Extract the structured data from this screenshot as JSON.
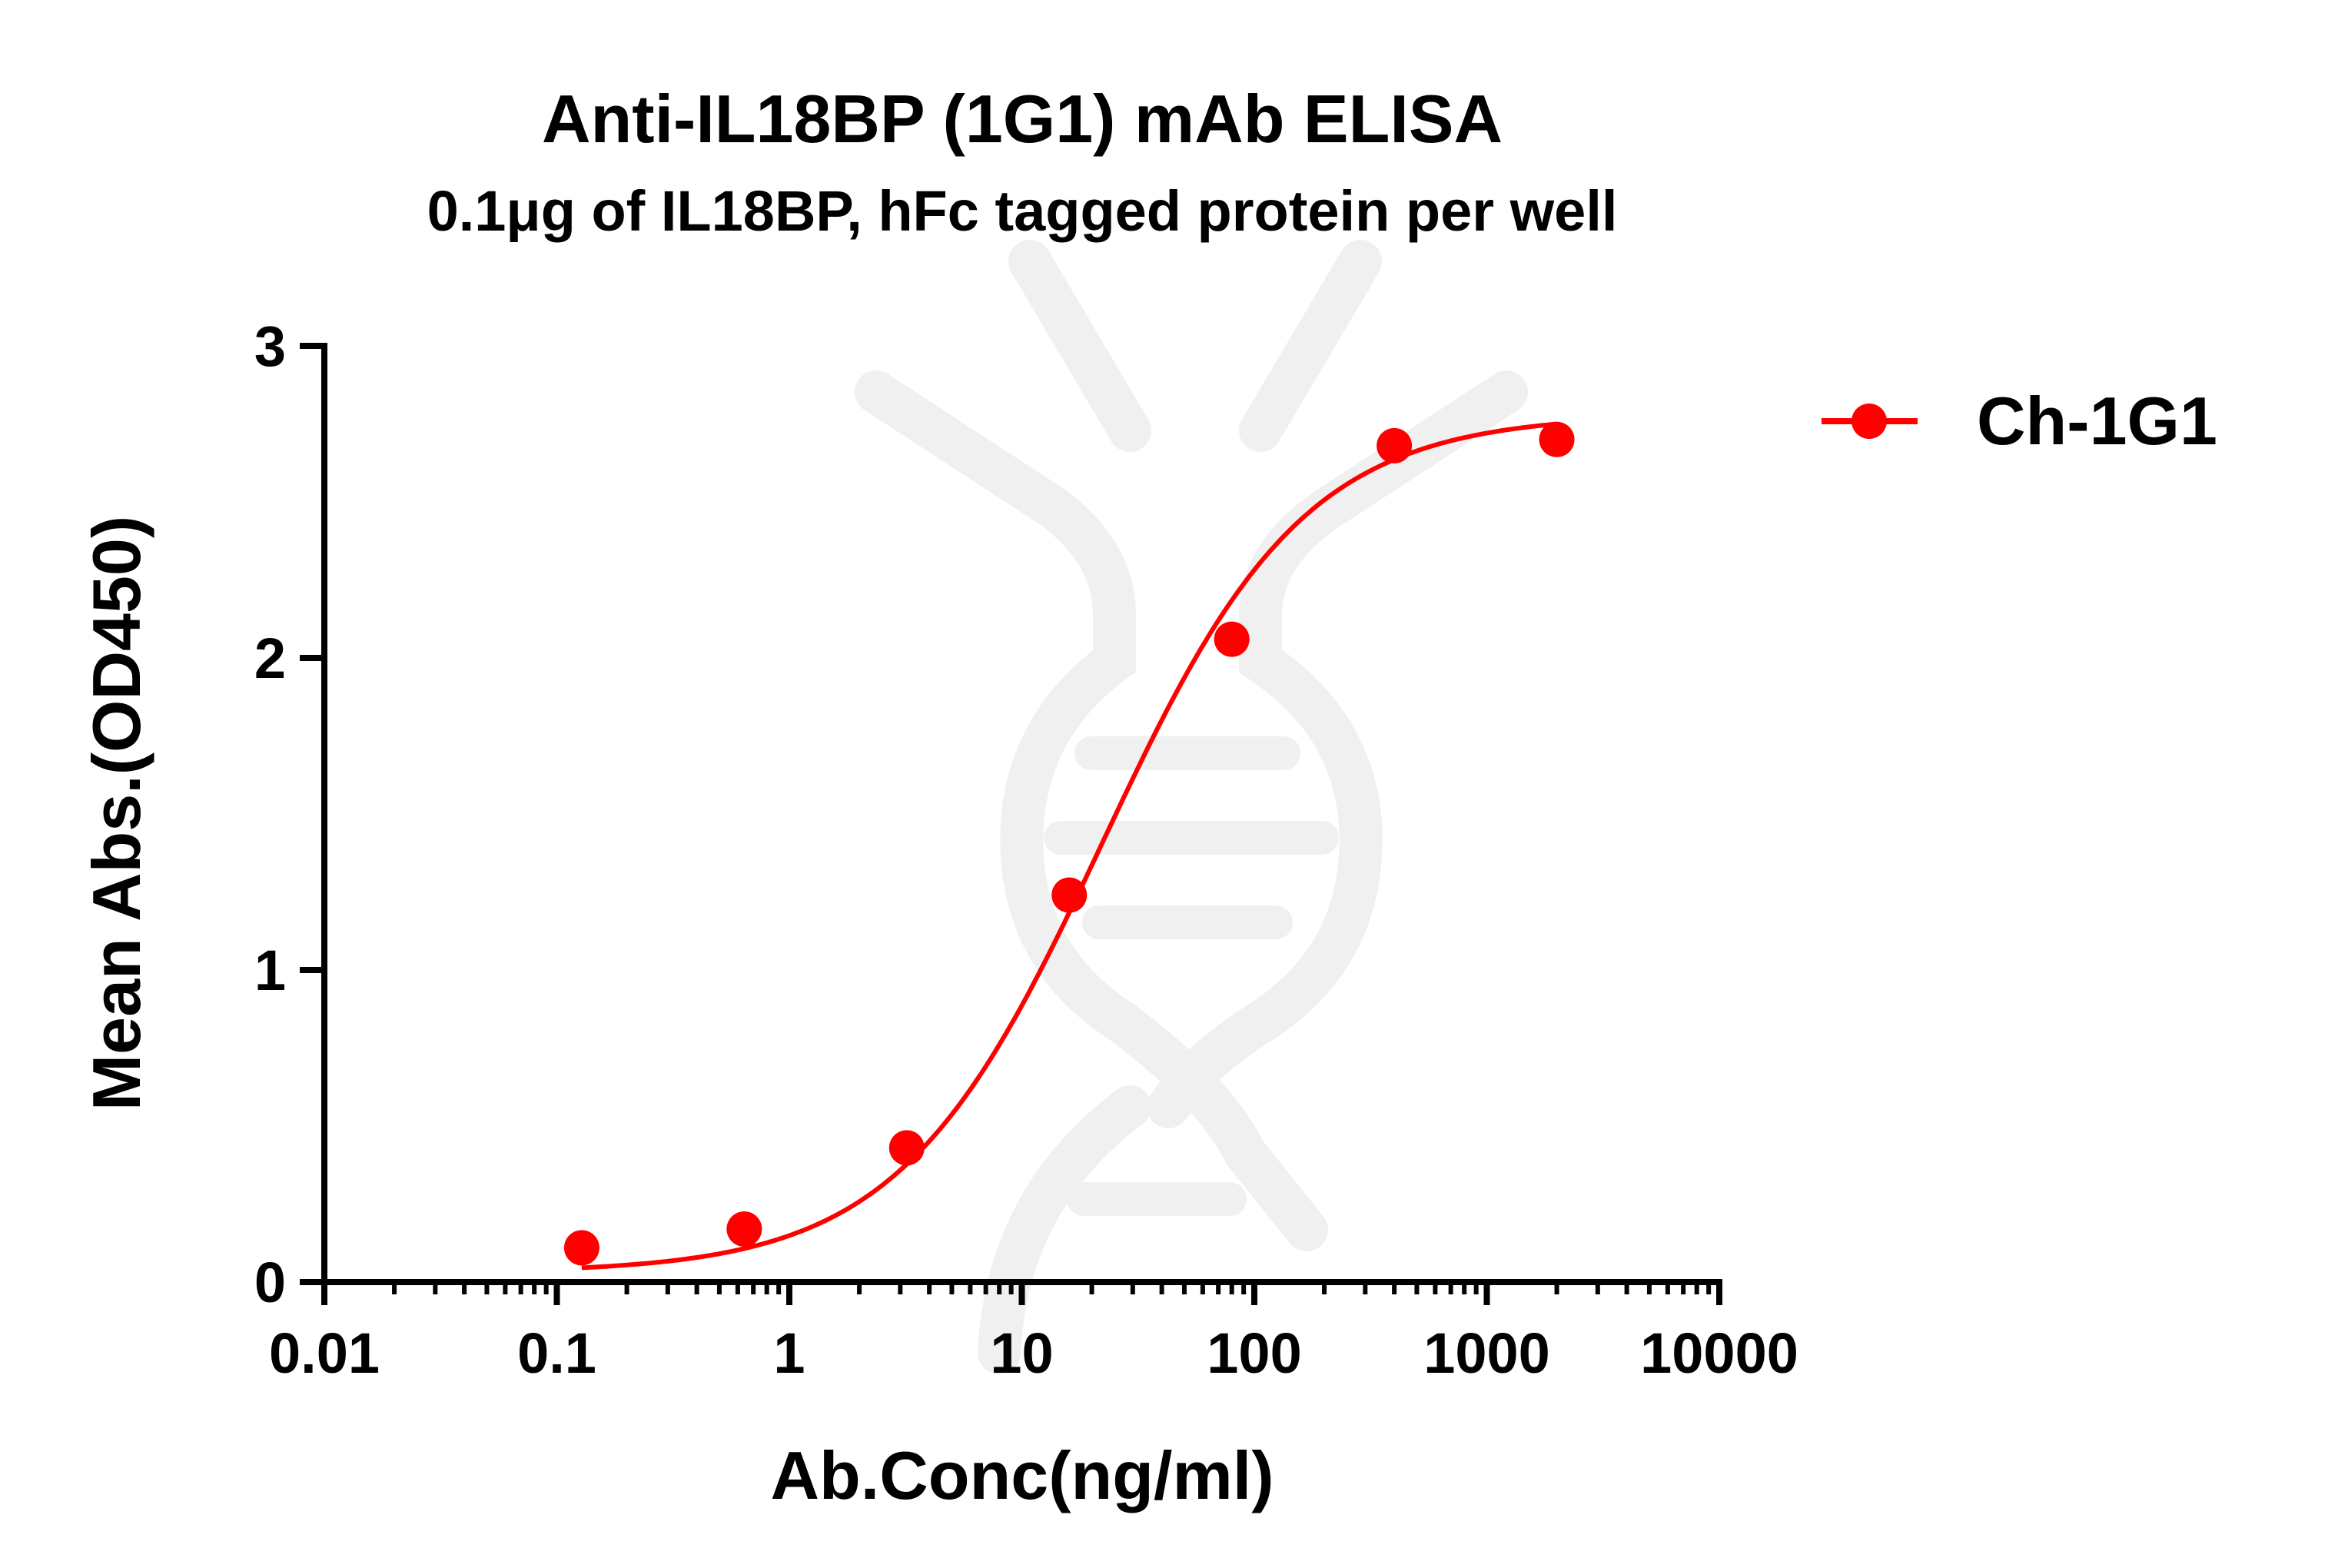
{
  "chart_data": {
    "type": "scatter",
    "title": "Anti-IL18BP (1G1) mAb ELISA",
    "subtitle": "0.1μg of IL18BP, hFc tagged protein per well",
    "xlabel": "Ab.Conc(ng/ml)",
    "ylabel": "Mean Abs.(OD450)",
    "x_scale": "log",
    "xlim": [
      0.01,
      10000
    ],
    "ylim": [
      0,
      3
    ],
    "x_ticks": [
      0.01,
      0.1,
      1,
      10,
      100,
      1000,
      10000
    ],
    "x_tick_labels": [
      "0.01",
      "0.1",
      "1",
      "10",
      "100",
      "1000",
      "10000"
    ],
    "y_ticks": [
      0,
      1,
      2,
      3
    ],
    "y_tick_labels": [
      "0",
      "1",
      "2",
      "3"
    ],
    "grid": false,
    "legend_position": "top-right",
    "watermark": "DNA double helix logo",
    "series": [
      {
        "name": "Ch-1G1",
        "color": "#ff0000",
        "marker": "circle",
        "fit_line": "4-parameter logistic",
        "x": [
          0.128,
          0.64,
          3.2,
          16,
          80,
          400,
          2000
        ],
        "y": [
          0.11,
          0.17,
          0.43,
          1.24,
          2.06,
          2.68,
          2.7
        ]
      }
    ]
  }
}
